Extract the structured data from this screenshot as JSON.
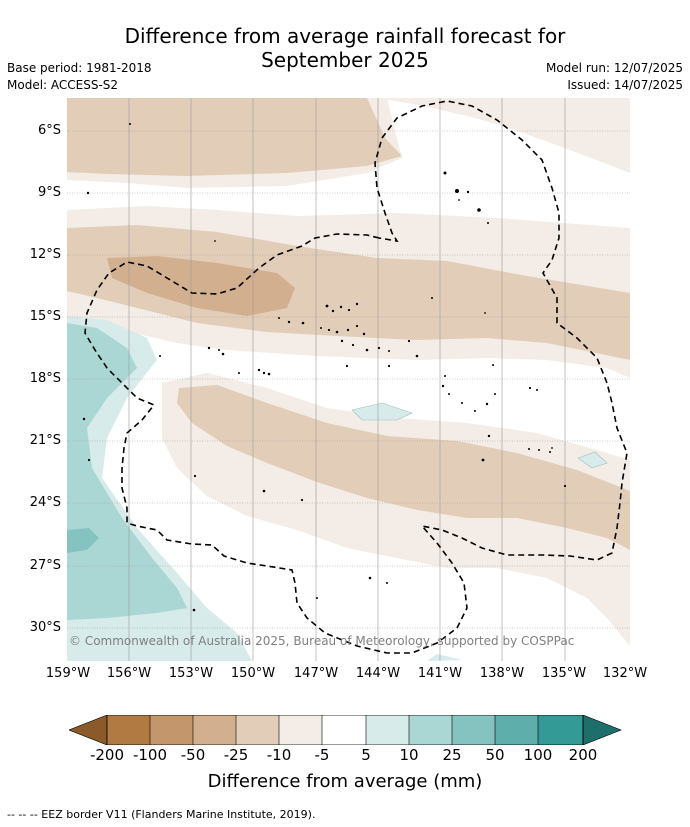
{
  "title_line1": "Difference from average rainfall forecast for",
  "title_line2": "September 2025",
  "base_period": "Base period: 1981-2018",
  "model": "Model: ACCESS-S2",
  "model_run": "Model run: 12/07/2025",
  "issued": "Issued: 14/07/2025",
  "lat_labels": [
    "6°S",
    "9°S",
    "12°S",
    "15°S",
    "18°S",
    "21°S",
    "24°S",
    "27°S",
    "30°S"
  ],
  "lon_labels": [
    "159°W",
    "156°W",
    "153°W",
    "150°W",
    "147°W",
    "144°W",
    "141°W",
    "138°W",
    "135°W",
    "132°W"
  ],
  "copyright": "© Commonwealth of Australia 2025, Bureau of Meteorology, supported by COSPPac",
  "colorbar": {
    "ticks": [
      "-200",
      "-100",
      "-50",
      "-25",
      "-10",
      "-5",
      "5",
      "10",
      "25",
      "50",
      "100",
      "200"
    ],
    "colors": [
      "#8a5a2b",
      "#b07a42",
      "#c4966b",
      "#d2b08f",
      "#e2cdb9",
      "#f4ece6",
      "#ffffff",
      "#d6ebea",
      "#aad6d4",
      "#85c3c0",
      "#5eaeab",
      "#339a96",
      "#1e6e6b"
    ],
    "label": "Difference from average (mm)"
  },
  "footnote": "--  --  -- EEZ border V11 (Flanders Marine Institute, 2019)."
}
